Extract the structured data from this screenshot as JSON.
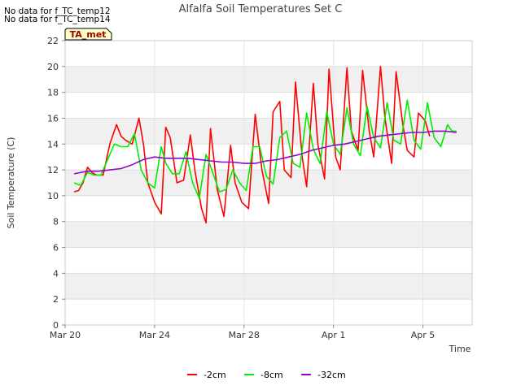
{
  "notes": [
    "No data for f_TC_temp12",
    "No data for f_TC_temp14"
  ],
  "badge": "TA_met",
  "chart_data": {
    "type": "line",
    "title": "Alfalfa Soil Temperatures Set C",
    "xlabel": "Time",
    "ylabel": "Soil Temperature (C)",
    "x_unit": "days since Mar 20",
    "xlim": [
      0,
      18.2
    ],
    "ylim": [
      0,
      22
    ],
    "yticks": [
      0,
      2,
      4,
      6,
      8,
      10,
      12,
      14,
      16,
      18,
      20,
      22
    ],
    "xticks": [
      {
        "value": 0,
        "label": "Mar 20"
      },
      {
        "value": 4,
        "label": "Mar 24"
      },
      {
        "value": 8,
        "label": "Mar 28"
      },
      {
        "value": 12,
        "label": "Apr 1"
      },
      {
        "value": 16,
        "label": "Apr 5"
      }
    ],
    "grid": true,
    "legend_position": "bottom",
    "series": [
      {
        "name": "-2cm",
        "color": "#ff0000",
        "x": [
          0.4,
          0.6,
          0.8,
          1.0,
          1.2,
          1.4,
          1.7,
          2.0,
          2.3,
          2.5,
          2.7,
          3.0,
          3.3,
          3.5,
          3.7,
          4.0,
          4.3,
          4.5,
          4.7,
          5.0,
          5.3,
          5.6,
          5.8,
          6.1,
          6.3,
          6.5,
          6.8,
          7.1,
          7.4,
          7.6,
          7.9,
          8.2,
          8.5,
          8.8,
          9.1,
          9.3,
          9.6,
          9.8,
          10.1,
          10.3,
          10.6,
          10.8,
          11.1,
          11.3,
          11.6,
          11.8,
          12.1,
          12.3,
          12.6,
          12.8,
          13.1,
          13.3,
          13.6,
          13.8,
          14.1,
          14.3,
          14.6,
          14.8,
          15.1,
          15.3,
          15.6,
          15.8,
          16.1,
          16.3,
          16.6,
          16.8,
          17.1,
          17.3,
          17.5
        ],
        "y": [
          10.3,
          10.4,
          11.0,
          12.2,
          11.8,
          11.6,
          11.6,
          14.0,
          15.5,
          14.6,
          14.3,
          14.0,
          16.0,
          14.0,
          11.0,
          9.5,
          8.6,
          15.3,
          14.5,
          11.0,
          11.2,
          14.7,
          12.0,
          9.0,
          7.9,
          15.2,
          10.5,
          8.4,
          13.9,
          11.0,
          9.5,
          9.0,
          16.3,
          12.0,
          9.4,
          16.5,
          17.3,
          12.0,
          11.4,
          18.8,
          13.0,
          10.7,
          18.7,
          14.0,
          11.3,
          19.8,
          13.0,
          12.0,
          19.9,
          15.0,
          13.5,
          19.7,
          15.0,
          13.0,
          20.0,
          16.0,
          12.5,
          19.6,
          15.5,
          13.5,
          13.0,
          16.4,
          15.8,
          14.6,
          null,
          null,
          null,
          null,
          null
        ]
      },
      {
        "name": "-8cm",
        "color": "#00ee00",
        "x": [
          0.4,
          0.7,
          1.0,
          1.3,
          1.6,
          1.9,
          2.2,
          2.5,
          2.8,
          3.1,
          3.4,
          3.7,
          4.0,
          4.3,
          4.5,
          4.8,
          5.1,
          5.4,
          5.7,
          6.0,
          6.3,
          6.6,
          6.9,
          7.2,
          7.5,
          7.8,
          8.1,
          8.4,
          8.7,
          9.0,
          9.3,
          9.6,
          9.9,
          10.2,
          10.5,
          10.8,
          11.1,
          11.4,
          11.7,
          12.0,
          12.3,
          12.6,
          12.9,
          13.2,
          13.5,
          13.8,
          14.1,
          14.4,
          14.7,
          15.0,
          15.3,
          15.6,
          15.9,
          16.2,
          16.5,
          16.8,
          17.1,
          17.3,
          17.5
        ],
        "y": [
          11.0,
          10.8,
          11.8,
          11.6,
          11.6,
          12.8,
          14.0,
          13.8,
          13.8,
          14.8,
          12.0,
          11.0,
          10.6,
          13.8,
          12.5,
          11.7,
          11.7,
          13.4,
          11.0,
          9.8,
          13.2,
          11.8,
          10.3,
          10.5,
          12.0,
          11.0,
          10.4,
          13.8,
          13.8,
          11.5,
          10.9,
          14.5,
          15.0,
          12.5,
          12.2,
          16.4,
          13.6,
          12.5,
          16.5,
          14.0,
          13.2,
          16.8,
          14.0,
          13.1,
          16.9,
          14.5,
          13.7,
          17.2,
          14.3,
          14.0,
          17.4,
          14.3,
          13.6,
          17.2,
          14.5,
          13.8,
          15.5,
          15.0,
          15.0
        ]
      },
      {
        "name": "-32cm",
        "color": "#9900cc",
        "x": [
          0.4,
          1.0,
          1.5,
          2.0,
          2.5,
          3.0,
          3.5,
          4.0,
          4.5,
          5.0,
          5.5,
          6.0,
          6.5,
          7.0,
          7.5,
          8.0,
          8.5,
          9.0,
          9.5,
          10.0,
          10.5,
          11.0,
          11.5,
          12.0,
          12.5,
          13.0,
          13.5,
          14.0,
          14.5,
          15.0,
          15.5,
          16.0,
          16.5,
          17.0,
          17.5
        ],
        "y": [
          11.7,
          11.9,
          11.9,
          12.0,
          12.1,
          12.4,
          12.8,
          13.0,
          12.9,
          12.9,
          12.9,
          12.8,
          12.7,
          12.6,
          12.6,
          12.5,
          12.5,
          12.7,
          12.8,
          13.0,
          13.2,
          13.5,
          13.7,
          13.9,
          14.0,
          14.2,
          14.4,
          14.6,
          14.7,
          14.8,
          14.9,
          14.9,
          15.0,
          15.0,
          14.9
        ]
      }
    ]
  }
}
